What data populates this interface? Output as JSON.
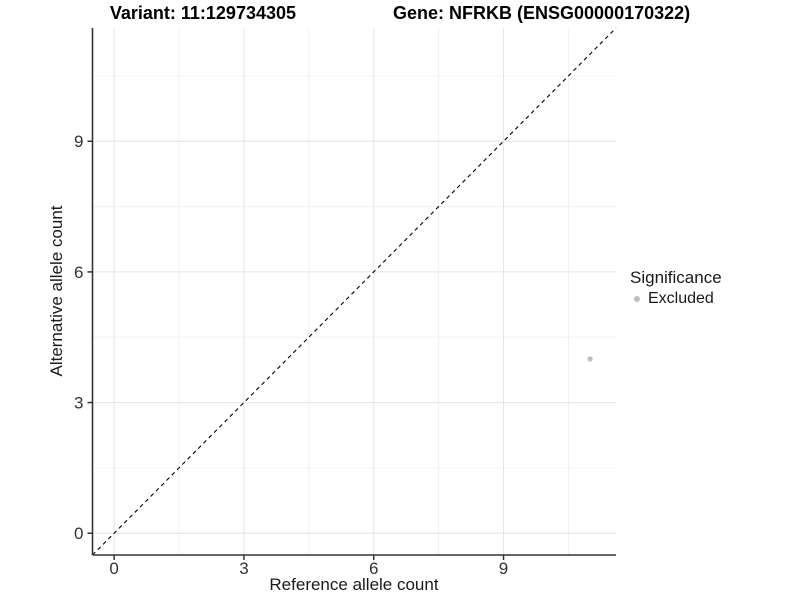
{
  "figure": {
    "title_left": "Variant: 11:129734305",
    "title_right": "Gene: NFRKB (ENSG00000170322)"
  },
  "chart_data": {
    "type": "scatter",
    "title": "Variant: 11:129734305    Gene: NFRKB (ENSG00000170322)",
    "xlabel": "Reference allele count",
    "ylabel": "Alternative allele count",
    "xlim": [
      -0.5,
      11.6
    ],
    "ylim": [
      -0.5,
      11.6
    ],
    "xticks": [
      0,
      3,
      6,
      9
    ],
    "yticks": [
      0,
      3,
      6,
      9
    ],
    "xticks_minor": [
      1.5,
      4.5,
      7.5,
      10.5
    ],
    "yticks_minor": [
      1.5,
      4.5,
      7.5,
      10.5
    ],
    "grid": "major+minor",
    "identity_line": {
      "slope": 1,
      "intercept": 0,
      "style": "dashed",
      "color": "#000000"
    },
    "series": [
      {
        "name": "Excluded",
        "color": "#bebebe",
        "points": [
          {
            "x": 11,
            "y": 4
          }
        ]
      }
    ],
    "legend": {
      "title": "Significance",
      "position": "right",
      "entries": [
        {
          "label": "Excluded",
          "color": "#bebebe"
        }
      ]
    }
  },
  "colors": {
    "background": "#ffffff",
    "grid_major": "#e6e6e6",
    "grid_minor": "#f0f0f0",
    "axis_line": "#333333",
    "tick_text": "#333333",
    "point": "#bebebe"
  }
}
